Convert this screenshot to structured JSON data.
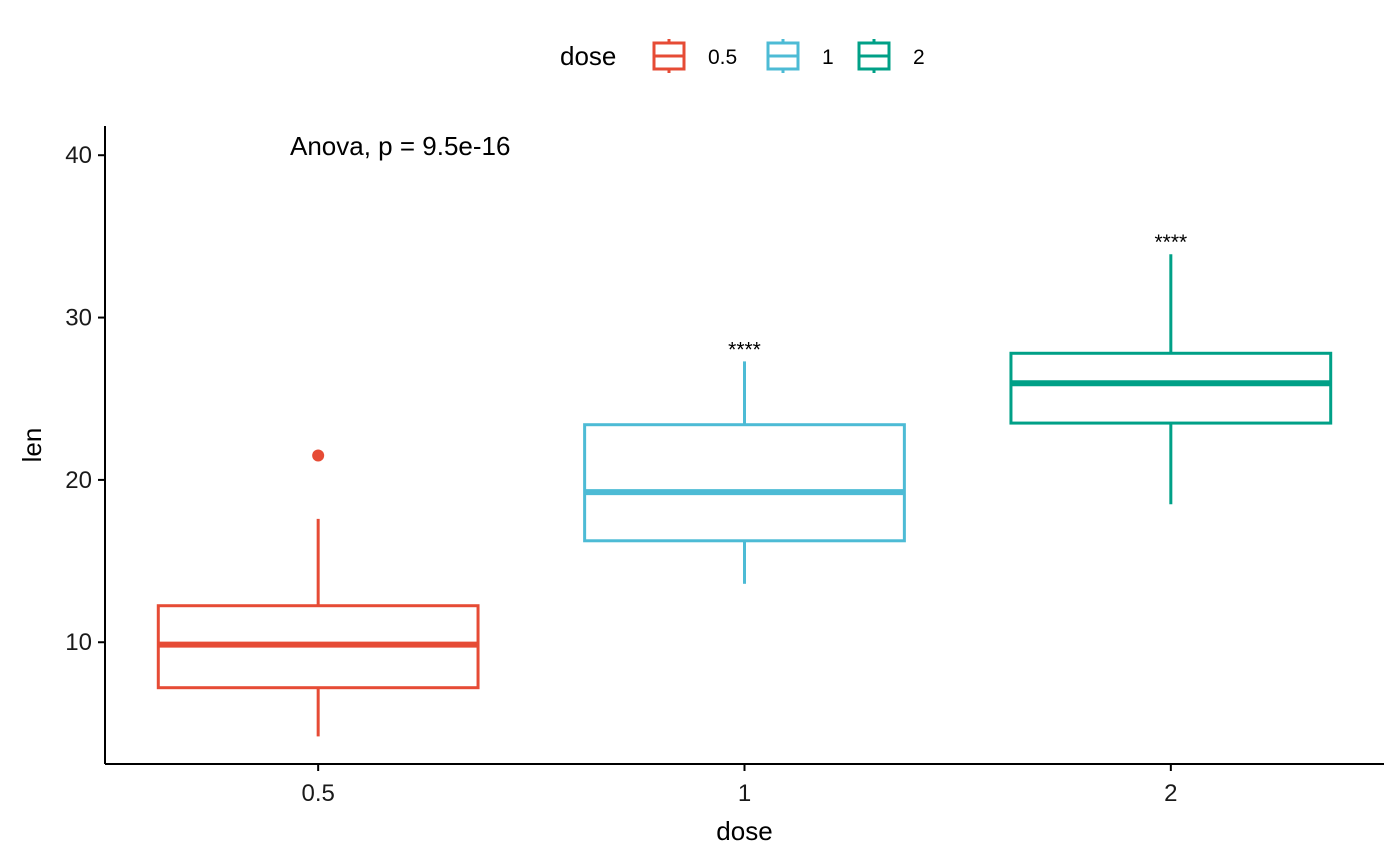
{
  "chart_data": {
    "type": "boxplot",
    "xlabel": "dose",
    "ylabel": "len",
    "ylim": [
      2.5,
      41.8
    ],
    "yticks": [
      10,
      20,
      30,
      40
    ],
    "categories": [
      "0.5",
      "1",
      "2"
    ],
    "legend": {
      "title": "dose",
      "position": "top",
      "entries": [
        "0.5",
        "1",
        "2"
      ]
    },
    "colors": {
      "0.5": "#E64B35",
      "1": "#4DBBD5",
      "2": "#00A087"
    },
    "boxes": [
      {
        "category": "0.5",
        "whisker_low": 4.2,
        "q1": 7.2,
        "median": 9.85,
        "q3": 12.25,
        "whisker_high": 17.6,
        "outliers": [
          21.5
        ],
        "significance": ""
      },
      {
        "category": "1",
        "whisker_low": 13.6,
        "q1": 16.25,
        "median": 19.25,
        "q3": 23.4,
        "whisker_high": 27.3,
        "outliers": [],
        "significance": "****"
      },
      {
        "category": "2",
        "whisker_low": 18.5,
        "q1": 23.5,
        "median": 25.95,
        "q3": 27.8,
        "whisker_high": 33.9,
        "outliers": [],
        "significance": "****"
      }
    ],
    "annotation": "Anova, p = 9.5e-16",
    "grid": false
  }
}
